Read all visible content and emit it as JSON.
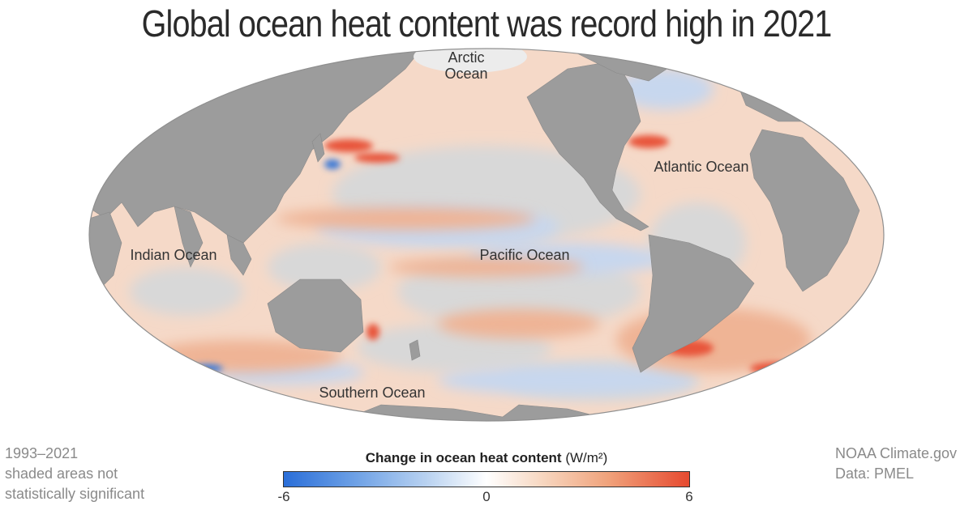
{
  "title": "Global ocean heat content was record high in 2021",
  "map": {
    "projection": "Mollweide",
    "ocean_labels": {
      "arctic_line1": "Arctic",
      "arctic_line2": "Ocean",
      "atlantic": "Atlantic Ocean",
      "indian": "Indian Ocean",
      "pacific": "Pacific Ocean",
      "southern": "Southern Ocean"
    },
    "colors": {
      "land": "#9a9a9a",
      "not_significant": "#d6d6d6",
      "warm": "#e64a30",
      "cool": "#2a6ed8"
    }
  },
  "legend": {
    "title": "Change in ocean heat content",
    "unit": "(W/m²)",
    "min_label": "-6",
    "mid_label": "0",
    "max_label": "6",
    "min": -6,
    "max": 6
  },
  "notes": {
    "period": "1993–2021",
    "shaded_line1": "shaded areas not",
    "shaded_line2": "statistically significant"
  },
  "credits": {
    "source": "NOAA Climate.gov",
    "data": "Data: PMEL"
  }
}
